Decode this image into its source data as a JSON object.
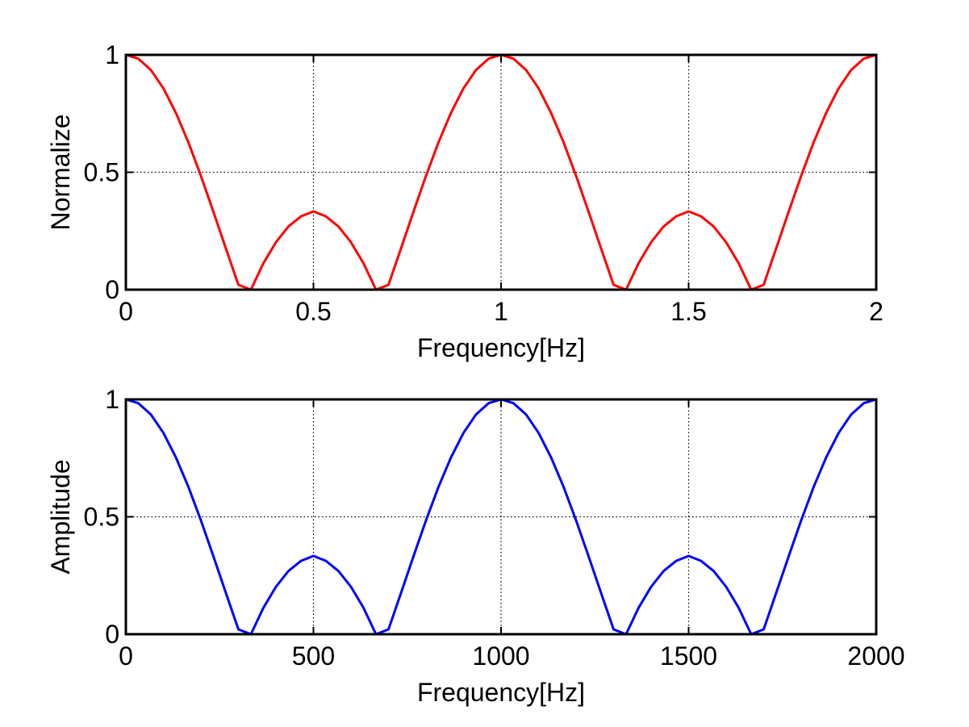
{
  "chart_data": [
    {
      "type": "line",
      "xlabel": "Frequency[Hz]",
      "ylabel": "Normalize",
      "xlim": [
        0,
        2
      ],
      "ylim": [
        0,
        1
      ],
      "xticks": [
        0,
        0.5,
        1,
        1.5,
        2
      ],
      "xtick_labels": [
        "0",
        "0.5",
        "1",
        "1.5",
        "2"
      ],
      "yticks": [
        0,
        0.5,
        1
      ],
      "ytick_labels": [
        "0",
        "0.5",
        "1"
      ],
      "grid": true,
      "series": [
        {
          "color": "#ff0000",
          "x": [
            0,
            0.0333,
            0.0667,
            0.1,
            0.1333,
            0.1667,
            0.2,
            0.2333,
            0.2667,
            0.3,
            0.3333,
            0.3667,
            0.4,
            0.4333,
            0.4667,
            0.5,
            0.5333,
            0.5667,
            0.6,
            0.6333,
            0.6667,
            0.7,
            0.7333,
            0.7667,
            0.8,
            0.8333,
            0.8667,
            0.9,
            0.9333,
            0.9667,
            1.0,
            1.0333,
            1.0667,
            1.1,
            1.1333,
            1.1667,
            1.2,
            1.2333,
            1.2667,
            1.3,
            1.3333,
            1.3667,
            1.4,
            1.4333,
            1.4667,
            1.5,
            1.5333,
            1.5667,
            1.6,
            1.6333,
            1.6667,
            1.7,
            1.7333,
            1.7667,
            1.8,
            1.8333,
            1.8667,
            1.9,
            1.9333,
            1.9667,
            2.0
          ],
          "y": [
            1.0,
            0.9837,
            0.9357,
            0.8577,
            0.7534,
            0.6273,
            0.4848,
            0.3321,
            0.1752,
            0.0205,
            0.0,
            0.1127,
            0.2019,
            0.269,
            0.3122,
            0.3333,
            0.3122,
            0.269,
            0.2019,
            0.1127,
            0.0,
            0.0205,
            0.1752,
            0.3321,
            0.4848,
            0.6273,
            0.7534,
            0.8577,
            0.9357,
            0.9837,
            1.0,
            0.9837,
            0.9357,
            0.8577,
            0.7534,
            0.6273,
            0.4848,
            0.3321,
            0.1752,
            0.0205,
            0.0,
            0.1127,
            0.2019,
            0.269,
            0.3122,
            0.3333,
            0.3122,
            0.269,
            0.2019,
            0.1127,
            0.0,
            0.0205,
            0.1752,
            0.3321,
            0.4848,
            0.6273,
            0.7534,
            0.8577,
            0.9357,
            0.9837,
            1.0
          ]
        }
      ]
    },
    {
      "type": "line",
      "xlabel": "Frequency[Hz]",
      "ylabel": "Amplitude",
      "xlim": [
        0,
        2000
      ],
      "ylim": [
        0,
        1
      ],
      "xticks": [
        0,
        500,
        1000,
        1500,
        2000
      ],
      "xtick_labels": [
        "0",
        "500",
        "1000",
        "1500",
        "2000"
      ],
      "yticks": [
        0,
        0.5,
        1
      ],
      "ytick_labels": [
        "0",
        "0.5",
        "1"
      ],
      "grid": true,
      "series": [
        {
          "color": "#0000ff",
          "x": [
            0,
            33.3,
            66.7,
            100,
            133.3,
            166.7,
            200,
            233.3,
            266.7,
            300,
            333.3,
            366.7,
            400,
            433.3,
            466.7,
            500,
            533.3,
            566.7,
            600,
            633.3,
            666.7,
            700,
            733.3,
            766.7,
            800,
            833.3,
            866.7,
            900,
            933.3,
            966.7,
            1000,
            1033.3,
            1066.7,
            1100,
            1133.3,
            1166.7,
            1200,
            1233.3,
            1266.7,
            1300,
            1333.3,
            1366.7,
            1400,
            1433.3,
            1466.7,
            1500,
            1533.3,
            1566.7,
            1600,
            1633.3,
            1666.7,
            1700,
            1733.3,
            1766.7,
            1800,
            1833.3,
            1866.7,
            1900,
            1933.3,
            1966.7,
            2000
          ],
          "y": [
            1.0,
            0.9837,
            0.9357,
            0.8577,
            0.7534,
            0.6273,
            0.4848,
            0.3321,
            0.1752,
            0.0205,
            0.0,
            0.1127,
            0.2019,
            0.269,
            0.3122,
            0.3333,
            0.3122,
            0.269,
            0.2019,
            0.1127,
            0.0,
            0.0205,
            0.1752,
            0.3321,
            0.4848,
            0.6273,
            0.7534,
            0.8577,
            0.9357,
            0.9837,
            1.0,
            0.9837,
            0.9357,
            0.8577,
            0.7534,
            0.6273,
            0.4848,
            0.3321,
            0.1752,
            0.0205,
            0.0,
            0.1127,
            0.2019,
            0.269,
            0.3122,
            0.3333,
            0.3122,
            0.269,
            0.2019,
            0.1127,
            0.0,
            0.0205,
            0.1752,
            0.3321,
            0.4848,
            0.6273,
            0.7534,
            0.8577,
            0.9357,
            0.9837,
            1.0
          ]
        }
      ]
    }
  ]
}
